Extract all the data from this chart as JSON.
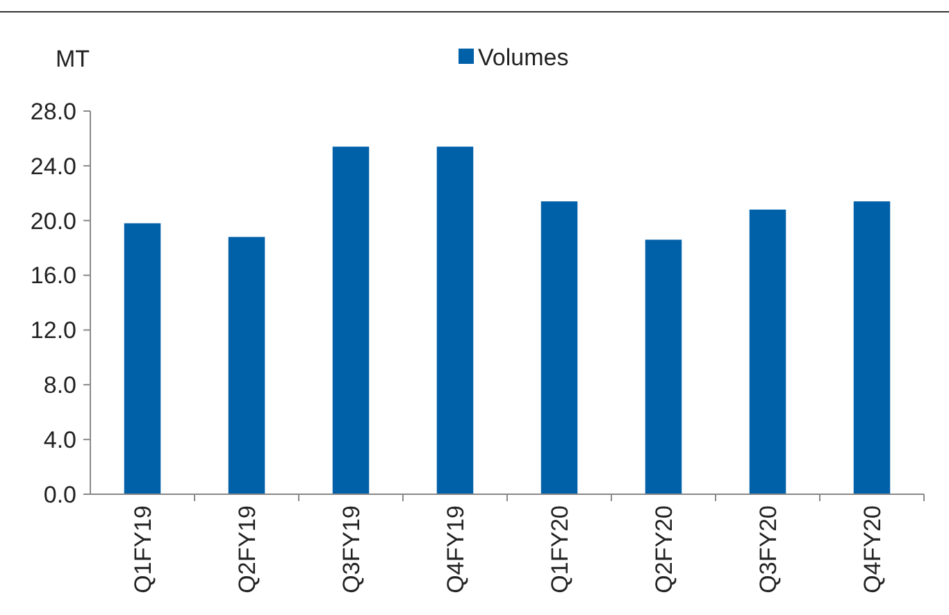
{
  "chart_data": {
    "type": "bar",
    "ylabel": "MT",
    "categories": [
      "Q1FY19",
      "Q2FY19",
      "Q3FY19",
      "Q4FY19",
      "Q1FY20",
      "Q2FY20",
      "Q3FY20",
      "Q4FY20"
    ],
    "series": [
      {
        "name": "Volumes",
        "color": "#0060a8",
        "values": [
          19.8,
          18.8,
          25.4,
          25.4,
          21.4,
          18.6,
          20.8,
          21.4
        ]
      }
    ],
    "ylim": [
      0,
      28
    ],
    "yticks": [
      {
        "value": 0,
        "label": "0.0"
      },
      {
        "value": 4,
        "label": "4.0"
      },
      {
        "value": 8,
        "label": "8.0"
      },
      {
        "value": 12,
        "label": "12.0"
      },
      {
        "value": 16,
        "label": "16.0"
      },
      {
        "value": 20,
        "label": "20.0"
      },
      {
        "value": 24,
        "label": "24.0"
      },
      {
        "value": 28,
        "label": "28.0"
      }
    ],
    "grid": false,
    "legend": "top"
  }
}
